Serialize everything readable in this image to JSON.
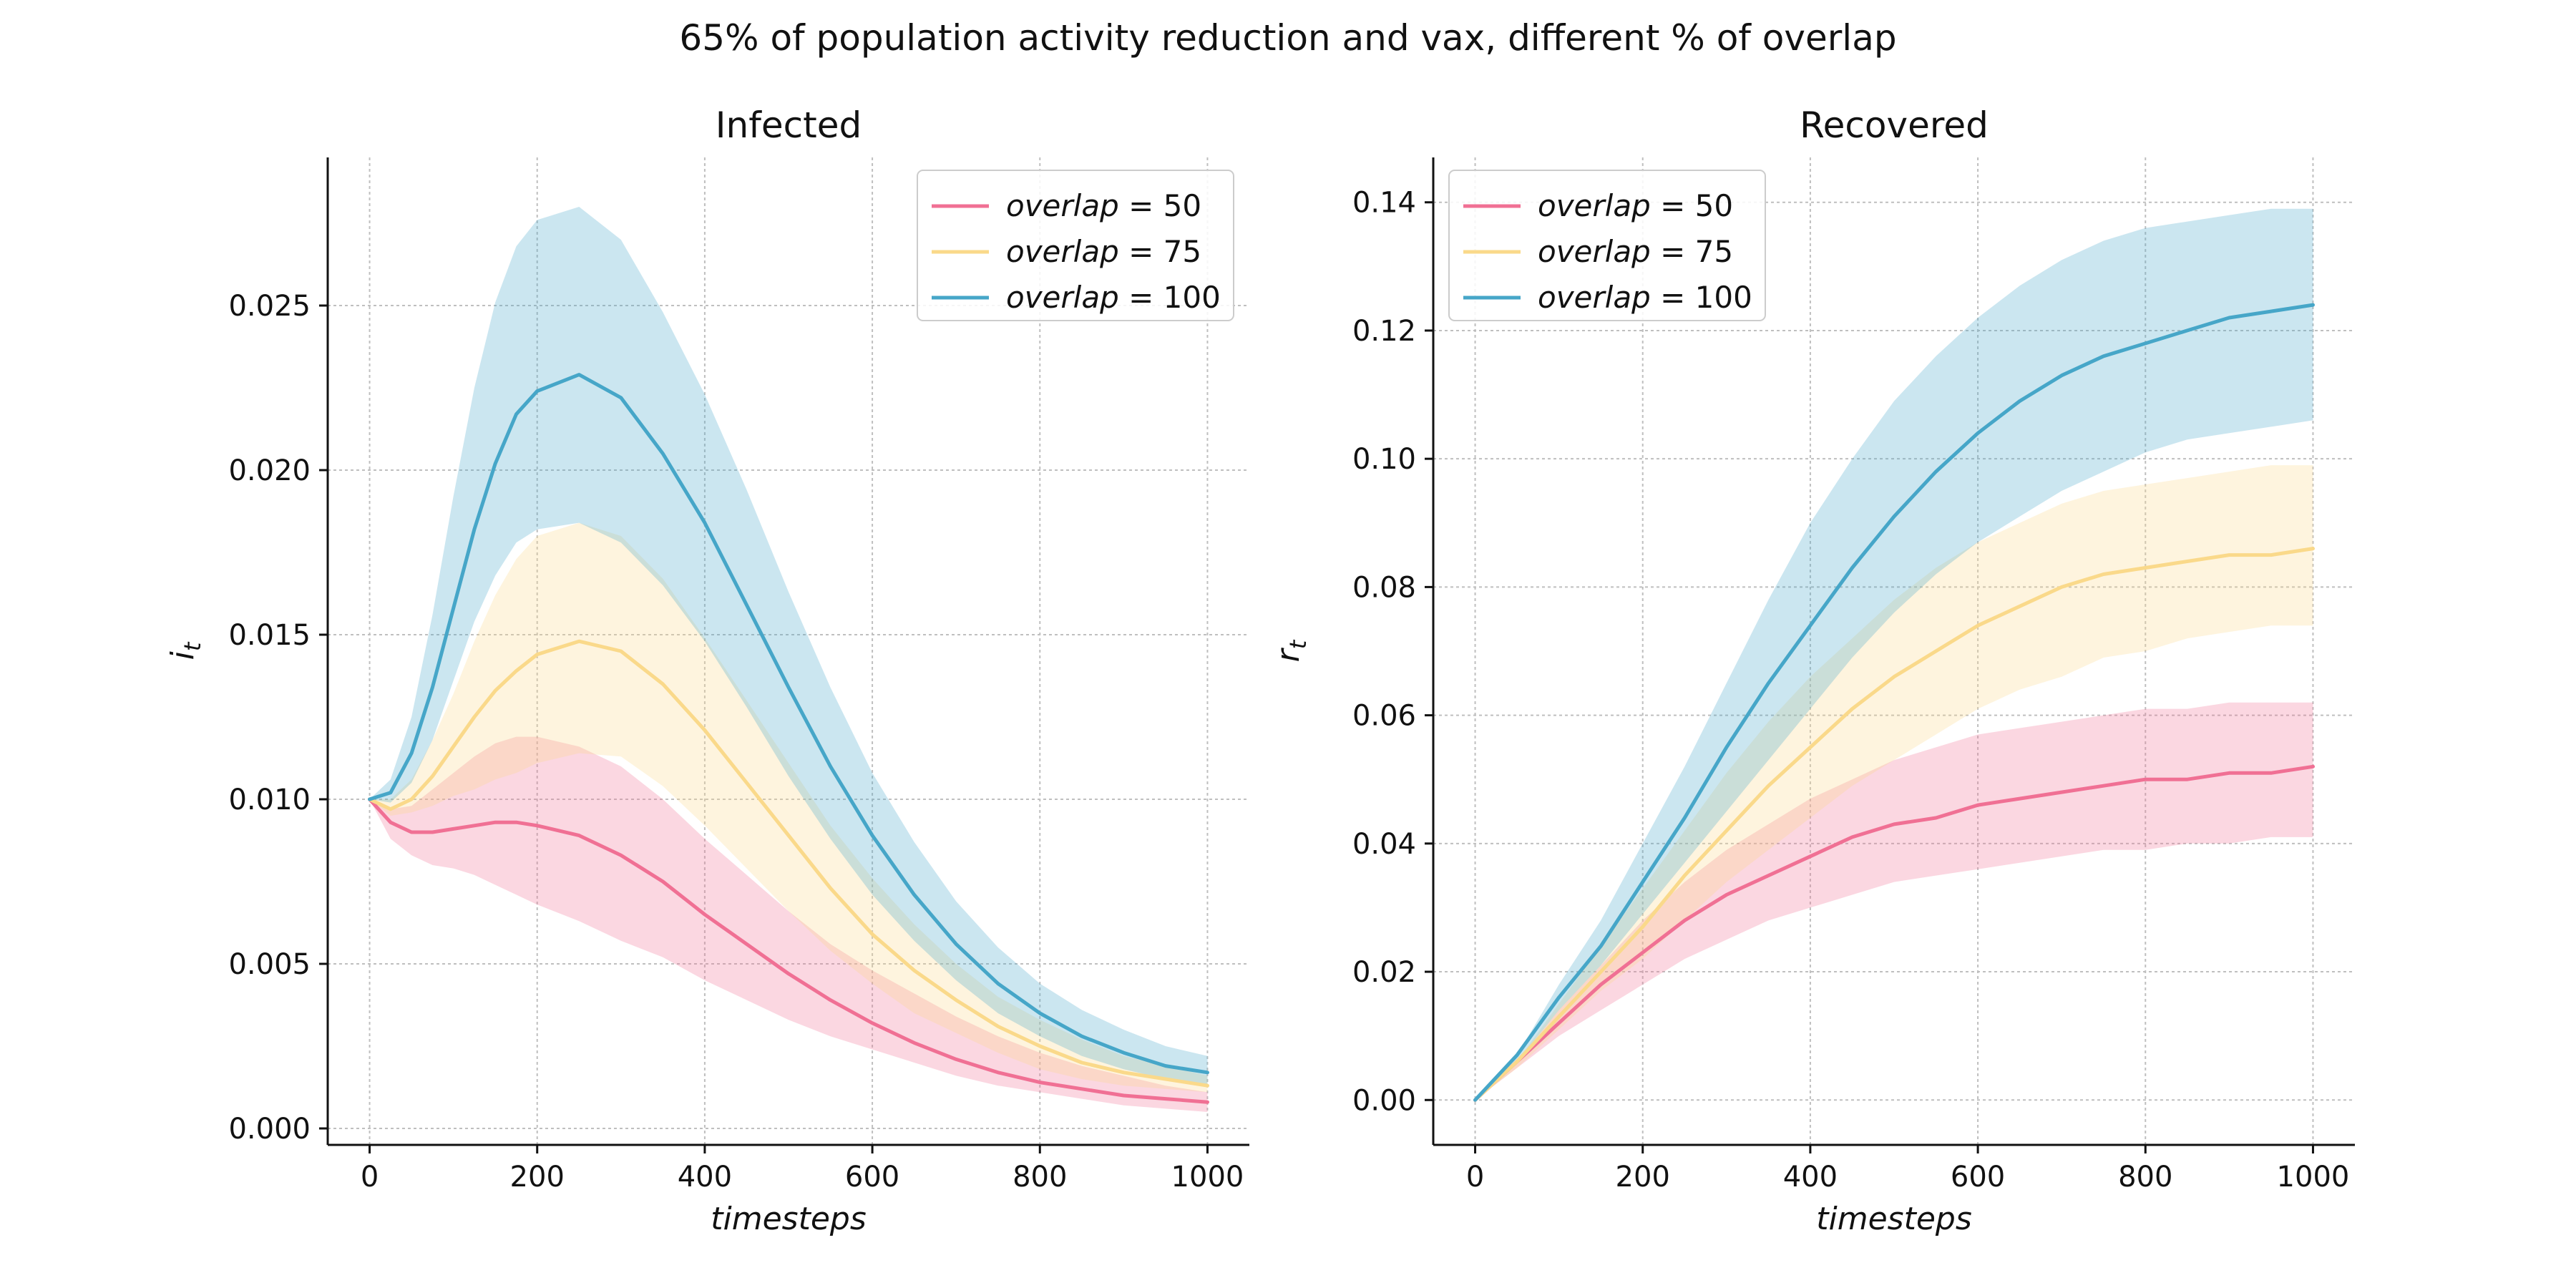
{
  "suptitle": "65% of population activity reduction and vax, different % of overlap",
  "colors": {
    "overlap_50": "#f07094",
    "overlap_75": "#fad98a",
    "overlap_100": "#46a6c8",
    "grid": "#bfbfbf",
    "axis": "#111111"
  },
  "chart_data": [
    {
      "type": "line",
      "title": "Infected",
      "xlabel": "timesteps",
      "ylabel": "i",
      "ylabel_sub": "t",
      "xlim": [
        -50,
        1050
      ],
      "ylim": [
        -0.0005,
        0.0295
      ],
      "xticks": [
        0,
        200,
        400,
        600,
        800,
        1000
      ],
      "yticks": [
        0.0,
        0.005,
        0.01,
        0.015,
        0.02,
        0.025
      ],
      "ytick_labels": [
        "0.000",
        "0.005",
        "0.010",
        "0.015",
        "0.020",
        "0.025"
      ],
      "grid": true,
      "legend_loc": "upper right",
      "x": [
        0,
        25,
        50,
        75,
        100,
        125,
        150,
        175,
        200,
        250,
        300,
        350,
        400,
        450,
        500,
        550,
        600,
        650,
        700,
        750,
        800,
        850,
        900,
        950,
        1000
      ],
      "series": [
        {
          "name": "overlap = 50",
          "legend_var": "overlap",
          "legend_value": "50",
          "color_key": "overlap_50",
          "values": [
            0.01,
            0.0093,
            0.009,
            0.009,
            0.0091,
            0.0092,
            0.0093,
            0.0093,
            0.0092,
            0.0089,
            0.0083,
            0.0075,
            0.0065,
            0.0056,
            0.0047,
            0.0039,
            0.0032,
            0.0026,
            0.0021,
            0.0017,
            0.0014,
            0.0012,
            0.001,
            0.0009,
            0.0008
          ],
          "lower": [
            0.01,
            0.0088,
            0.0083,
            0.008,
            0.0079,
            0.0077,
            0.0074,
            0.0071,
            0.0068,
            0.0063,
            0.0057,
            0.0052,
            0.0045,
            0.0039,
            0.0033,
            0.0028,
            0.0024,
            0.002,
            0.0016,
            0.0013,
            0.0011,
            0.0009,
            0.0007,
            0.0006,
            0.0005
          ],
          "upper": [
            0.01,
            0.0097,
            0.0098,
            0.0103,
            0.0108,
            0.0113,
            0.0117,
            0.0119,
            0.0119,
            0.0116,
            0.011,
            0.01,
            0.0088,
            0.0077,
            0.0066,
            0.0056,
            0.0048,
            0.0041,
            0.0034,
            0.0028,
            0.0023,
            0.0019,
            0.0016,
            0.0013,
            0.0011
          ]
        },
        {
          "name": "overlap = 75",
          "legend_var": "overlap",
          "legend_value": "75",
          "color_key": "overlap_75",
          "values": [
            0.01,
            0.0097,
            0.01,
            0.0107,
            0.0116,
            0.0125,
            0.0133,
            0.0139,
            0.0144,
            0.0148,
            0.0145,
            0.0135,
            0.0121,
            0.0105,
            0.0089,
            0.0073,
            0.0059,
            0.0048,
            0.0039,
            0.0031,
            0.0025,
            0.002,
            0.0017,
            0.0015,
            0.0013
          ],
          "lower": [
            0.01,
            0.0095,
            0.0096,
            0.0098,
            0.0101,
            0.0103,
            0.0106,
            0.0108,
            0.0111,
            0.0114,
            0.0113,
            0.0104,
            0.0092,
            0.0079,
            0.0066,
            0.0054,
            0.0044,
            0.0035,
            0.0029,
            0.0023,
            0.0018,
            0.0015,
            0.0013,
            0.0012,
            0.0011
          ],
          "upper": [
            0.01,
            0.01,
            0.0106,
            0.0118,
            0.0132,
            0.0148,
            0.0162,
            0.0173,
            0.018,
            0.0184,
            0.018,
            0.0167,
            0.0149,
            0.013,
            0.0111,
            0.0092,
            0.0076,
            0.0062,
            0.005,
            0.004,
            0.0033,
            0.0027,
            0.0022,
            0.0019,
            0.0016
          ]
        },
        {
          "name": "overlap = 100",
          "legend_var": "overlap",
          "legend_value": "100",
          "color_key": "overlap_100",
          "values": [
            0.01,
            0.0102,
            0.0114,
            0.0134,
            0.0158,
            0.0182,
            0.0202,
            0.0217,
            0.0224,
            0.0229,
            0.0222,
            0.0205,
            0.0184,
            0.0159,
            0.0134,
            0.011,
            0.0089,
            0.0071,
            0.0056,
            0.0044,
            0.0035,
            0.0028,
            0.0023,
            0.0019,
            0.0017
          ],
          "lower": [
            0.01,
            0.0099,
            0.0105,
            0.0118,
            0.0136,
            0.0154,
            0.0168,
            0.0178,
            0.0182,
            0.0184,
            0.0178,
            0.0165,
            0.0148,
            0.0128,
            0.0107,
            0.0088,
            0.0071,
            0.0057,
            0.0045,
            0.0035,
            0.0028,
            0.0022,
            0.0018,
            0.0015,
            0.0013
          ],
          "upper": [
            0.01,
            0.0106,
            0.0125,
            0.0156,
            0.0192,
            0.0225,
            0.0251,
            0.0268,
            0.0276,
            0.028,
            0.027,
            0.0248,
            0.0223,
            0.0194,
            0.0163,
            0.0134,
            0.0108,
            0.0087,
            0.0069,
            0.0055,
            0.0044,
            0.0036,
            0.003,
            0.0025,
            0.0022
          ]
        }
      ]
    },
    {
      "type": "line",
      "title": "Recovered",
      "xlabel": "timesteps",
      "ylabel": "r",
      "ylabel_sub": "t",
      "xlim": [
        -50,
        1050
      ],
      "ylim": [
        -0.007,
        0.147
      ],
      "xticks": [
        0,
        200,
        400,
        600,
        800,
        1000
      ],
      "yticks": [
        0.0,
        0.02,
        0.04,
        0.06,
        0.08,
        0.1,
        0.12,
        0.14
      ],
      "ytick_labels": [
        "0.00",
        "0.02",
        "0.04",
        "0.06",
        "0.08",
        "0.10",
        "0.12",
        "0.14"
      ],
      "grid": true,
      "legend_loc": "upper left",
      "x": [
        0,
        50,
        100,
        150,
        200,
        250,
        300,
        350,
        400,
        450,
        500,
        550,
        600,
        650,
        700,
        750,
        800,
        850,
        900,
        950,
        1000
      ],
      "series": [
        {
          "name": "overlap = 50",
          "legend_var": "overlap",
          "legend_value": "50",
          "color_key": "overlap_50",
          "values": [
            0.0,
            0.006,
            0.012,
            0.018,
            0.023,
            0.028,
            0.032,
            0.035,
            0.038,
            0.041,
            0.043,
            0.044,
            0.046,
            0.047,
            0.048,
            0.049,
            0.05,
            0.05,
            0.051,
            0.051,
            0.052
          ],
          "lower": [
            0.0,
            0.005,
            0.01,
            0.014,
            0.018,
            0.022,
            0.025,
            0.028,
            0.03,
            0.032,
            0.034,
            0.035,
            0.036,
            0.037,
            0.038,
            0.039,
            0.039,
            0.04,
            0.04,
            0.041,
            0.041
          ],
          "upper": [
            0.0,
            0.006,
            0.014,
            0.021,
            0.028,
            0.034,
            0.039,
            0.043,
            0.047,
            0.05,
            0.053,
            0.055,
            0.057,
            0.058,
            0.059,
            0.06,
            0.061,
            0.061,
            0.062,
            0.062,
            0.062
          ]
        },
        {
          "name": "overlap = 75",
          "legend_var": "overlap",
          "legend_value": "75",
          "color_key": "overlap_75",
          "values": [
            0.0,
            0.006,
            0.013,
            0.02,
            0.027,
            0.035,
            0.042,
            0.049,
            0.055,
            0.061,
            0.066,
            0.07,
            0.074,
            0.077,
            0.08,
            0.082,
            0.083,
            0.084,
            0.085,
            0.085,
            0.086
          ],
          "lower": [
            0.0,
            0.005,
            0.011,
            0.017,
            0.022,
            0.028,
            0.034,
            0.039,
            0.044,
            0.049,
            0.053,
            0.057,
            0.061,
            0.064,
            0.066,
            0.069,
            0.07,
            0.072,
            0.073,
            0.074,
            0.074
          ],
          "upper": [
            0.0,
            0.006,
            0.015,
            0.024,
            0.033,
            0.042,
            0.051,
            0.059,
            0.066,
            0.072,
            0.078,
            0.083,
            0.087,
            0.09,
            0.093,
            0.095,
            0.096,
            0.097,
            0.098,
            0.099,
            0.099
          ]
        },
        {
          "name": "overlap = 100",
          "legend_var": "overlap",
          "legend_value": "100",
          "color_key": "overlap_100",
          "values": [
            0.0,
            0.007,
            0.016,
            0.024,
            0.034,
            0.044,
            0.055,
            0.065,
            0.074,
            0.083,
            0.091,
            0.098,
            0.104,
            0.109,
            0.113,
            0.116,
            0.118,
            0.12,
            0.122,
            0.123,
            0.124
          ],
          "lower": [
            0.0,
            0.006,
            0.014,
            0.021,
            0.029,
            0.037,
            0.045,
            0.053,
            0.061,
            0.069,
            0.076,
            0.082,
            0.087,
            0.091,
            0.095,
            0.098,
            0.101,
            0.103,
            0.104,
            0.105,
            0.106
          ],
          "upper": [
            0.0,
            0.007,
            0.018,
            0.028,
            0.04,
            0.052,
            0.065,
            0.078,
            0.09,
            0.1,
            0.109,
            0.116,
            0.122,
            0.127,
            0.131,
            0.134,
            0.136,
            0.137,
            0.138,
            0.139,
            0.139
          ]
        }
      ]
    }
  ]
}
